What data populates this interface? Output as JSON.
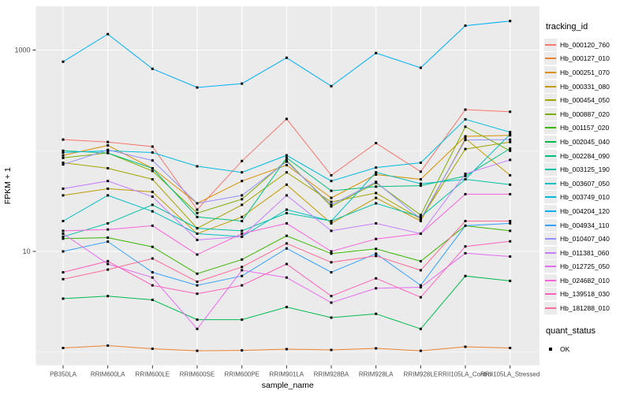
{
  "chart_data": {
    "type": "line",
    "title": "",
    "xlabel": "sample_name",
    "ylabel": "FPKM + 1",
    "y_scale": "log10",
    "y_ticks": [
      {
        "label": "10",
        "value": 10
      },
      {
        "label": "1000",
        "value": 1000
      }
    ],
    "y_minor_gridlines": [
      1,
      100
    ],
    "ylim_log": [
      0.75,
      2700
    ],
    "grid": true,
    "categories": [
      "PB350LA",
      "RRIM600LA",
      "RRIM600LE",
      "RRIM600SE",
      "RRIM600PE",
      "RRIM901LA",
      "RRIM928BA",
      "RRIM928LA",
      "RRIM928LE",
      "RRII105LA_Control",
      "RRII105LA_Stressed"
    ],
    "legend": {
      "title": "tracking_id",
      "position": "right"
    },
    "legend2": {
      "title": "quant_status",
      "items": [
        {
          "label": "OK",
          "marker": "black-square"
        }
      ]
    },
    "point_marker": {
      "shape": "square",
      "color": "#000000",
      "size": 3
    },
    "series": [
      {
        "name": "Hb_000120_760",
        "color": "#F8766D",
        "values": [
          129,
          122,
          110,
          26,
          79,
          207,
          57,
          119,
          62,
          256,
          244
        ]
      },
      {
        "name": "Hb_000127_010",
        "color": "#EA8331",
        "values": [
          1.1,
          1.16,
          1.08,
          1.03,
          1.04,
          1.07,
          1.05,
          1.09,
          1.03,
          1.13,
          1.1
        ]
      },
      {
        "name": "Hb_000251_070",
        "color": "#D89000",
        "values": [
          90,
          113,
          67,
          30,
          50,
          72,
          34,
          58,
          52,
          139,
          142
        ]
      },
      {
        "name": "Hb_000331_080",
        "color": "#C09B00",
        "values": [
          36,
          42,
          39,
          15,
          22,
          46,
          19,
          34,
          20,
          132,
          57
        ]
      },
      {
        "name": "Hb_000454_050",
        "color": "#A3A500",
        "values": [
          76,
          67,
          52,
          17,
          29,
          61,
          31,
          38,
          21,
          104,
          122
        ]
      },
      {
        "name": "Hb_000887_020",
        "color": "#7CAE00",
        "values": [
          85,
          95,
          63,
          24,
          33,
          80,
          28,
          48,
          23,
          173,
          100
        ]
      },
      {
        "name": "Hb_001157_020",
        "color": "#39B600",
        "values": [
          13.4,
          13.7,
          11.1,
          6.0,
          8.3,
          14.3,
          9.5,
          10.6,
          8.0,
          18,
          16
        ]
      },
      {
        "name": "Hb_002045_040",
        "color": "#00BB4E",
        "values": [
          3.4,
          3.6,
          3.3,
          2.1,
          2.1,
          2.8,
          2.2,
          2.4,
          1.7,
          5.7,
          5.1
        ]
      },
      {
        "name": "Hb_002284_090",
        "color": "#00BF7D",
        "values": [
          100,
          95,
          67,
          22,
          20,
          85,
          40,
          44,
          45,
          56,
          105
        ]
      },
      {
        "name": "Hb_003125_190",
        "color": "#00C1A3",
        "values": [
          14,
          19,
          29,
          17,
          16,
          24,
          20,
          30,
          22,
          52,
          46
        ]
      },
      {
        "name": "Hb_003607_050",
        "color": "#00BFC4",
        "values": [
          20,
          36,
          25,
          15,
          14,
          26,
          20,
          61,
          47,
          52,
          146
        ]
      },
      {
        "name": "Hb_003749_010",
        "color": "#00BAE0",
        "values": [
          96,
          100,
          96,
          70,
          61,
          90,
          50,
          68,
          76,
          205,
          153
        ]
      },
      {
        "name": "Hb_004204_120",
        "color": "#00B0F6",
        "values": [
          766,
          1440,
          651,
          425,
          464,
          838,
          438,
          933,
          667,
          1745,
          1940
        ]
      },
      {
        "name": "Hb_004934_110",
        "color": "#35A2FF",
        "values": [
          10,
          12.5,
          6.2,
          4.6,
          5.7,
          10.7,
          6.2,
          9.5,
          4.6,
          18,
          19
        ]
      },
      {
        "name": "Hb_010407_040",
        "color": "#9590FF",
        "values": [
          73,
          102,
          80,
          30,
          36,
          78,
          29,
          49,
          21,
          128,
          129
        ]
      },
      {
        "name": "Hb_011381_060",
        "color": "#C77CFF",
        "values": [
          42,
          50,
          35,
          13,
          14,
          36,
          16,
          19,
          15,
          59,
          81
        ]
      },
      {
        "name": "Hb_012725_050",
        "color": "#E76BF3",
        "values": [
          15,
          7.5,
          5.5,
          1.7,
          6.5,
          5.5,
          3.1,
          4.3,
          4.4,
          9.6,
          8.9
        ]
      },
      {
        "name": "Hb_024682_010",
        "color": "#FA62DB",
        "values": [
          16,
          16.5,
          18,
          9.3,
          15,
          19,
          10,
          13.3,
          15,
          37,
          37
        ]
      },
      {
        "name": "Hb_139518_030",
        "color": "#FF62BC",
        "values": [
          6.2,
          8.0,
          4.6,
          3.8,
          4.6,
          7.5,
          3.6,
          5.4,
          3.5,
          11.2,
          12.6
        ]
      },
      {
        "name": "Hb_181288_010",
        "color": "#FF6A98",
        "values": [
          5.3,
          6.6,
          8.5,
          5.0,
          7.0,
          12.0,
          7.8,
          9.0,
          6.5,
          20,
          20
        ]
      }
    ]
  },
  "colors": {
    "panel_bg": "#EBEBEB",
    "grid": "#FFFFFF",
    "axis_text": "#4D4D4D",
    "axis_title": "#000000",
    "point": "#000000",
    "page_bg": "#FFFFFF"
  }
}
